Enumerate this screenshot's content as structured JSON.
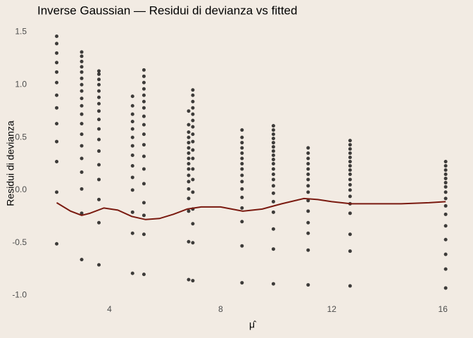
{
  "chart_data": {
    "type": "scatter",
    "title": "Inverse Gaussian — Residui di devianza vs fitted",
    "x_label": "μ̂",
    "y_label": "Residui di devianza",
    "xlim": [
      1.2,
      16.4
    ],
    "xticks": [
      4,
      8,
      12,
      16
    ],
    "ylim": [
      -1.07,
      1.57
    ],
    "yticks": [
      1.5,
      {
        "value": 1.0,
        "label": "1.0"
      },
      0.5,
      {
        "value": 0.0,
        "label": "0.0"
      },
      -0.5,
      {
        "value": -1.0,
        "label": "-1.0"
      }
    ],
    "grid": false,
    "point_color": "#000000",
    "groups": [
      {
        "x": 2.1,
        "values": [
          1.46,
          1.39,
          1.3,
          1.21,
          1.12,
          1.02,
          0.9,
          0.78,
          0.63,
          0.46,
          0.27,
          -0.02,
          -0.51
        ]
      },
      {
        "x": 3.0,
        "values": [
          1.31,
          1.27,
          1.22,
          1.17,
          1.12,
          1.06,
          1.0,
          0.94,
          0.87,
          0.8,
          0.72,
          0.63,
          0.53,
          0.42,
          0.3,
          0.17,
          0.01,
          -0.22,
          -0.66
        ]
      },
      {
        "x": 3.62,
        "values": [
          1.13,
          1.1,
          1.05,
          1.0,
          0.94,
          0.88,
          0.82,
          0.75,
          0.67,
          0.58,
          0.48,
          0.37,
          0.24,
          0.1,
          -0.09,
          -0.31,
          -0.71
        ]
      },
      {
        "x": 4.83,
        "values": [
          0.89,
          0.8,
          0.72,
          0.65,
          0.58,
          0.5,
          0.42,
          0.33,
          0.23,
          0.12,
          0.0,
          -0.21,
          -0.41,
          -0.79
        ]
      },
      {
        "x": 5.24,
        "values": [
          1.14,
          1.08,
          1.02,
          0.96,
          0.9,
          0.84,
          0.78,
          0.7,
          0.62,
          0.53,
          0.43,
          0.32,
          0.2,
          0.06,
          -0.12,
          -0.24,
          -0.42,
          -0.8
        ]
      },
      {
        "x": 6.85,
        "values": [
          0.75,
          0.62,
          0.55,
          0.5,
          0.45,
          0.4,
          0.35,
          0.3,
          0.25,
          0.2,
          0.14,
          0.08,
          0.01,
          -0.08,
          -0.2,
          -0.49,
          -0.85
        ]
      },
      {
        "x": 7.0,
        "values": [
          0.95,
          0.9,
          0.84,
          0.78,
          0.72,
          0.66,
          0.6,
          0.53,
          0.46,
          0.38,
          0.3,
          0.2,
          0.1,
          -0.02,
          -0.18,
          -0.32,
          -0.5,
          -0.86
        ]
      },
      {
        "x": 8.77,
        "values": [
          0.57,
          0.5,
          0.45,
          0.4,
          0.35,
          0.3,
          0.25,
          0.2,
          0.14,
          0.08,
          0.01,
          -0.07,
          -0.17,
          -0.3,
          -0.53,
          -0.88
        ]
      },
      {
        "x": 9.9,
        "values": [
          0.61,
          0.57,
          0.53,
          0.49,
          0.45,
          0.41,
          0.37,
          0.33,
          0.29,
          0.25,
          0.2,
          0.15,
          0.1,
          0.04,
          -0.03,
          -0.11,
          -0.21,
          -0.37,
          -0.56,
          -0.89
        ]
      },
      {
        "x": 11.15,
        "values": [
          0.4,
          0.35,
          0.3,
          0.25,
          0.2,
          0.15,
          0.1,
          0.04,
          -0.02,
          -0.1,
          -0.2,
          -0.31,
          -0.41,
          -0.57,
          -0.9
        ]
      },
      {
        "x": 12.66,
        "values": [
          0.47,
          0.43,
          0.39,
          0.35,
          0.31,
          0.27,
          0.23,
          0.19,
          0.15,
          0.1,
          0.05,
          0,
          -0.06,
          -0.13,
          -0.22,
          -0.42,
          -0.58,
          -0.91
        ]
      },
      {
        "x": 16.1,
        "values": [
          0.27,
          0.23,
          0.19,
          0.15,
          0.11,
          0.07,
          0.03,
          -0.02,
          -0.08,
          -0.15,
          -0.23,
          -0.34,
          -0.47,
          -0.61,
          -0.75,
          -0.93
        ]
      }
    ],
    "smooth": {
      "color": "#7a1a10",
      "x": [
        2.1,
        2.6,
        3.0,
        3.3,
        3.8,
        4.3,
        4.8,
        5.3,
        5.8,
        6.3,
        6.8,
        7.3,
        8,
        8.8,
        9.5,
        10.2,
        11,
        11.5,
        12,
        12.7,
        13.5,
        14.5,
        15.5,
        16.1
      ],
      "values": [
        -0.12,
        -0.2,
        -0.24,
        -0.22,
        -0.17,
        -0.19,
        -0.25,
        -0.28,
        -0.27,
        -0.23,
        -0.18,
        -0.16,
        -0.16,
        -0.2,
        -0.18,
        -0.13,
        -0.08,
        -0.09,
        -0.11,
        -0.13,
        -0.13,
        -0.13,
        -0.12,
        -0.11
      ]
    }
  }
}
